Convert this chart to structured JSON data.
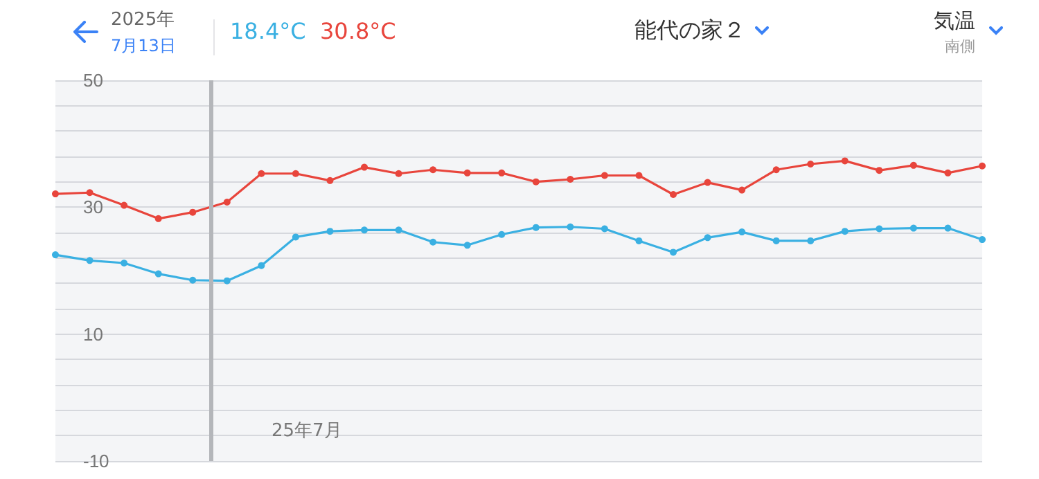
{
  "chart_data": {
    "type": "line",
    "title": "能代の家２",
    "annotations": [
      "2025年",
      "7月13日",
      "18.4°C",
      "30.8°C",
      "気温",
      "南側",
      "25年7月"
    ],
    "categories": [
      null,
      null,
      null,
      null,
      null,
      null,
      null,
      null,
      null,
      null,
      null,
      null,
      null,
      null,
      null,
      null,
      null,
      null,
      null,
      null,
      null,
      null,
      null,
      null,
      null,
      null,
      null,
      null
    ],
    "series": [
      {
        "color": "#e8453c",
        "values": [
          32.1,
          32.3,
          30.3,
          28.2,
          29.2,
          30.8,
          35.3,
          35.3,
          34.2,
          36.3,
          35.3,
          35.9,
          35.4,
          35.4,
          34.0,
          34.4,
          35.0,
          35.0,
          32.0,
          33.9,
          32.7,
          35.9,
          36.8,
          37.3,
          35.8,
          36.6,
          35.4,
          36.5
        ]
      },
      {
        "color": "#3ab0e2",
        "values": [
          22.5,
          21.6,
          21.2,
          19.5,
          18.5,
          18.4,
          20.8,
          25.3,
          26.2,
          26.4,
          26.4,
          24.5,
          24.0,
          25.7,
          26.8,
          26.9,
          26.6,
          24.7,
          22.9,
          25.2,
          26.1,
          24.7,
          24.7,
          26.2,
          26.6,
          26.7,
          26.7,
          24.9
        ]
      }
    ],
    "ylim": [
      -10,
      50
    ],
    "yticks": [
      -10,
      {
        "value": -6,
        "label": null
      },
      {
        "value": -2,
        "label": null
      },
      {
        "value": 2,
        "label": null
      },
      {
        "value": 6,
        "label": null
      },
      10,
      {
        "value": 14,
        "label": null
      },
      {
        "value": 18,
        "label": null
      },
      {
        "value": 22,
        "label": null
      },
      {
        "value": 26,
        "label": null
      },
      30,
      {
        "value": 34,
        "label": null
      },
      {
        "value": 38,
        "label": null
      },
      {
        "value": 42,
        "label": null
      },
      {
        "value": 46,
        "label": null
      },
      50
    ],
    "grid": "y",
    "tick_labels": "y",
    "marker": "circle"
  }
}
